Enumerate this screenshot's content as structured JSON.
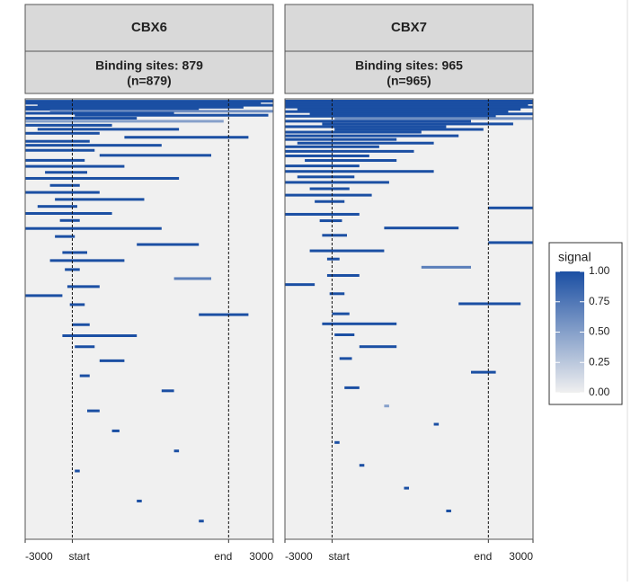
{
  "chart_data": [
    {
      "type": "heatmap",
      "title": "CBX6",
      "subtitle": "Binding sites: 879",
      "n_label": "(n=879)",
      "xlim": [
        0,
        100
      ],
      "ylim": [
        0,
        879
      ],
      "xticks": [
        {
          "value": 0,
          "label": "-3000"
        },
        {
          "value": 19,
          "label": "start"
        },
        {
          "value": 82,
          "label": "end"
        },
        {
          "value": 100,
          "label": "3000"
        }
      ],
      "segments": [
        [
          2,
          0,
          100,
          1
        ],
        [
          6,
          0,
          95,
          1
        ],
        [
          10,
          5,
          100,
          1
        ],
        [
          14,
          0,
          88,
          1
        ],
        [
          18,
          0,
          70,
          1
        ],
        [
          22,
          10,
          100,
          0.6
        ],
        [
          26,
          0,
          60,
          1
        ],
        [
          30,
          20,
          98,
          1
        ],
        [
          36,
          0,
          45,
          1
        ],
        [
          42,
          0,
          80,
          0.5
        ],
        [
          50,
          0,
          35,
          1
        ],
        [
          58,
          5,
          62,
          1
        ],
        [
          66,
          0,
          30,
          1
        ],
        [
          74,
          40,
          90,
          1
        ],
        [
          82,
          0,
          26,
          1
        ],
        [
          90,
          0,
          55,
          1
        ],
        [
          100,
          0,
          28,
          1
        ],
        [
          110,
          30,
          75,
          1
        ],
        [
          120,
          0,
          24,
          1
        ],
        [
          132,
          0,
          40,
          1
        ],
        [
          144,
          8,
          25,
          1
        ],
        [
          156,
          0,
          62,
          1
        ],
        [
          170,
          10,
          22,
          1
        ],
        [
          184,
          0,
          30,
          1
        ],
        [
          198,
          12,
          48,
          1
        ],
        [
          212,
          5,
          21,
          1
        ],
        [
          226,
          0,
          35,
          1
        ],
        [
          240,
          14,
          22,
          1
        ],
        [
          256,
          0,
          55,
          1
        ],
        [
          272,
          12,
          20,
          1
        ],
        [
          288,
          45,
          70,
          1
        ],
        [
          304,
          15,
          25,
          1
        ],
        [
          320,
          10,
          40,
          1
        ],
        [
          338,
          16,
          22,
          1
        ],
        [
          356,
          60,
          75,
          0.7
        ],
        [
          372,
          17,
          30,
          1
        ],
        [
          390,
          0,
          15,
          1
        ],
        [
          408,
          18,
          24,
          1
        ],
        [
          428,
          70,
          90,
          1
        ],
        [
          448,
          19,
          26,
          1
        ],
        [
          470,
          15,
          45,
          1
        ],
        [
          492,
          20,
          28,
          1
        ],
        [
          520,
          30,
          40,
          1
        ],
        [
          550,
          22,
          26,
          1
        ],
        [
          580,
          55,
          60,
          1
        ],
        [
          620,
          25,
          30,
          1
        ],
        [
          660,
          35,
          38,
          1
        ],
        [
          700,
          60,
          62,
          1
        ],
        [
          740,
          20,
          22,
          1
        ],
        [
          800,
          45,
          47,
          1
        ],
        [
          840,
          70,
          72,
          1
        ]
      ]
    },
    {
      "type": "heatmap",
      "title": "CBX7",
      "subtitle": "Binding sites: 965",
      "n_label": "(n=965)",
      "xlim": [
        0,
        100
      ],
      "ylim": [
        0,
        965
      ],
      "xticks": [
        {
          "value": 0,
          "label": "-3000"
        },
        {
          "value": 19,
          "label": "start"
        },
        {
          "value": 82,
          "label": "end"
        },
        {
          "value": 100,
          "label": "3000"
        }
      ],
      "segments": [
        [
          2,
          0,
          100,
          1
        ],
        [
          6,
          0,
          100,
          1
        ],
        [
          10,
          0,
          98,
          1
        ],
        [
          15,
          0,
          100,
          1
        ],
        [
          20,
          5,
          95,
          1
        ],
        [
          25,
          0,
          90,
          1
        ],
        [
          30,
          10,
          100,
          1
        ],
        [
          35,
          0,
          85,
          1
        ],
        [
          40,
          20,
          100,
          0.6
        ],
        [
          46,
          0,
          75,
          1
        ],
        [
          52,
          15,
          92,
          1
        ],
        [
          58,
          0,
          65,
          1
        ],
        [
          64,
          20,
          80,
          1
        ],
        [
          70,
          0,
          55,
          1
        ],
        [
          78,
          0,
          70,
          1
        ],
        [
          86,
          0,
          45,
          1
        ],
        [
          94,
          5,
          60,
          1
        ],
        [
          102,
          0,
          38,
          1
        ],
        [
          112,
          0,
          52,
          1
        ],
        [
          122,
          0,
          34,
          1
        ],
        [
          132,
          8,
          45,
          1
        ],
        [
          144,
          0,
          30,
          1
        ],
        [
          156,
          0,
          60,
          1
        ],
        [
          168,
          5,
          28,
          1
        ],
        [
          180,
          0,
          42,
          1
        ],
        [
          194,
          10,
          26,
          1
        ],
        [
          208,
          0,
          35,
          1
        ],
        [
          222,
          12,
          24,
          1
        ],
        [
          236,
          82,
          100,
          1
        ],
        [
          250,
          0,
          30,
          1
        ],
        [
          264,
          14,
          23,
          1
        ],
        [
          280,
          40,
          70,
          1
        ],
        [
          296,
          15,
          25,
          1
        ],
        [
          312,
          82,
          100,
          1
        ],
        [
          330,
          10,
          40,
          1
        ],
        [
          348,
          17,
          22,
          1
        ],
        [
          366,
          55,
          75,
          0.7
        ],
        [
          384,
          17,
          30,
          1
        ],
        [
          404,
          0,
          12,
          1
        ],
        [
          424,
          18,
          24,
          1
        ],
        [
          446,
          70,
          95,
          1
        ],
        [
          468,
          19,
          26,
          1
        ],
        [
          490,
          15,
          45,
          1
        ],
        [
          514,
          20,
          28,
          1
        ],
        [
          540,
          30,
          45,
          1
        ],
        [
          566,
          22,
          27,
          1
        ],
        [
          596,
          75,
          85,
          1
        ],
        [
          630,
          24,
          30,
          1
        ],
        [
          670,
          40,
          42,
          0.5
        ],
        [
          710,
          60,
          62,
          1
        ],
        [
          750,
          20,
          22,
          1
        ],
        [
          800,
          30,
          32,
          1
        ],
        [
          850,
          48,
          50,
          1
        ],
        [
          900,
          65,
          67,
          1
        ]
      ]
    }
  ],
  "legend": {
    "title": "signal",
    "colors": [
      "#f0f0f0",
      "#1b4fa3"
    ],
    "ticks": [
      {
        "value": 0,
        "label": "0.00"
      },
      {
        "value": 0.25,
        "label": "0.25"
      },
      {
        "value": 0.5,
        "label": "0.50"
      },
      {
        "value": 0.75,
        "label": "0.75"
      },
      {
        "value": 1,
        "label": "1.00"
      }
    ]
  }
}
